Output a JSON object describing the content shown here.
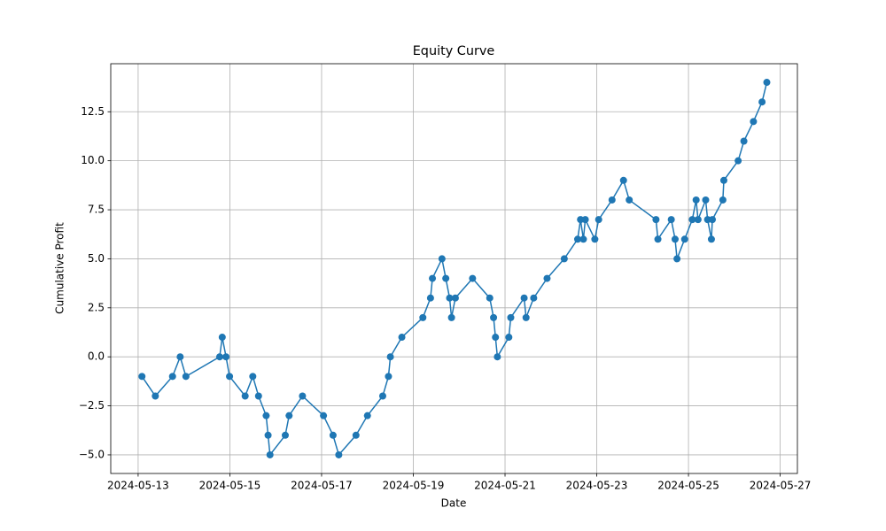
{
  "chart_data": {
    "type": "line",
    "title": "Equity Curve",
    "x_label": "Date",
    "y_label": "Cumulative Profit",
    "color": "#1f77b4",
    "grid": true,
    "marker": "circle",
    "x": [
      "2024-05-13T02:00",
      "2024-05-13T09:00",
      "2024-05-13T18:00",
      "2024-05-13T22:00",
      "2024-05-14T01:00",
      "2024-05-14T18:40",
      "2024-05-14T20:00",
      "2024-05-14T22:00",
      "2024-05-14T23:50",
      "2024-05-15T08:00",
      "2024-05-15T12:00",
      "2024-05-15T15:00",
      "2024-05-15T19:00",
      "2024-05-15T20:00",
      "2024-05-15T21:00",
      "2024-05-16T05:00",
      "2024-05-16T07:00",
      "2024-05-16T14:00",
      "2024-05-17T01:00",
      "2024-05-17T06:00",
      "2024-05-17T09:00",
      "2024-05-17T18:00",
      "2024-05-18T00:00",
      "2024-05-18T08:00",
      "2024-05-18T11:00",
      "2024-05-18T12:00",
      "2024-05-18T18:00",
      "2024-05-19T05:00",
      "2024-05-19T09:00",
      "2024-05-19T10:00",
      "2024-05-19T15:00",
      "2024-05-19T17:00",
      "2024-05-19T19:00",
      "2024-05-19T20:00",
      "2024-05-19T22:00",
      "2024-05-20T07:00",
      "2024-05-20T16:00",
      "2024-05-20T18:00",
      "2024-05-20T19:00",
      "2024-05-20T20:00",
      "2024-05-21T02:00",
      "2024-05-21T03:00",
      "2024-05-21T10:00",
      "2024-05-21T11:00",
      "2024-05-21T15:00",
      "2024-05-21T22:00",
      "2024-05-22T07:00",
      "2024-05-22T14:00",
      "2024-05-22T15:30",
      "2024-05-22T17:00",
      "2024-05-22T18:00",
      "2024-05-22T23:00",
      "2024-05-23T01:00",
      "2024-05-23T08:00",
      "2024-05-23T14:00",
      "2024-05-23T17:00",
      "2024-05-24T07:00",
      "2024-05-24T08:00",
      "2024-05-24T15:00",
      "2024-05-24T17:00",
      "2024-05-24T18:00",
      "2024-05-24T22:00",
      "2024-05-25T02:00",
      "2024-05-25T04:00",
      "2024-05-25T05:00",
      "2024-05-25T09:00",
      "2024-05-25T10:00",
      "2024-05-25T12:00",
      "2024-05-25T12:30",
      "2024-05-25T18:00",
      "2024-05-25T18:30",
      "2024-05-26T02:00",
      "2024-05-26T05:00",
      "2024-05-26T10:00",
      "2024-05-26T14:30",
      "2024-05-26T17:00"
    ],
    "values": [
      -1,
      -2,
      -1,
      0,
      -1,
      0,
      1,
      0,
      -1,
      -2,
      -1,
      -2,
      -3,
      -4,
      -5,
      -4,
      -3,
      -2,
      -3,
      -4,
      -5,
      -4,
      -3,
      -2,
      -1,
      0,
      1,
      2,
      3,
      4,
      5,
      4,
      3,
      2,
      3,
      4,
      3,
      2,
      1,
      0,
      1,
      2,
      3,
      2,
      3,
      4,
      5,
      6,
      7,
      6,
      7,
      6,
      7,
      8,
      9,
      8,
      7,
      6,
      7,
      6,
      5,
      6,
      7,
      8,
      7,
      8,
      7,
      6,
      7,
      8,
      9,
      10,
      11,
      12,
      13,
      14
    ],
    "xlim": [
      "2024-05-12T09:40",
      "2024-05-27T09:00"
    ],
    "xticks": [
      "2024-05-13",
      "2024-05-15",
      "2024-05-17",
      "2024-05-19",
      "2024-05-21",
      "2024-05-23",
      "2024-05-25",
      "2024-05-27"
    ],
    "ylim": [
      -5.95,
      14.95
    ],
    "yticks": [
      {
        "value": -5,
        "label": "−5.0"
      },
      {
        "value": -2.5,
        "label": "−2.5"
      },
      {
        "value": 0,
        "label": "0.0"
      },
      2.5,
      {
        "value": 5,
        "label": "5.0"
      },
      7.5,
      {
        "value": 10,
        "label": "10.0"
      },
      12.5
    ]
  }
}
